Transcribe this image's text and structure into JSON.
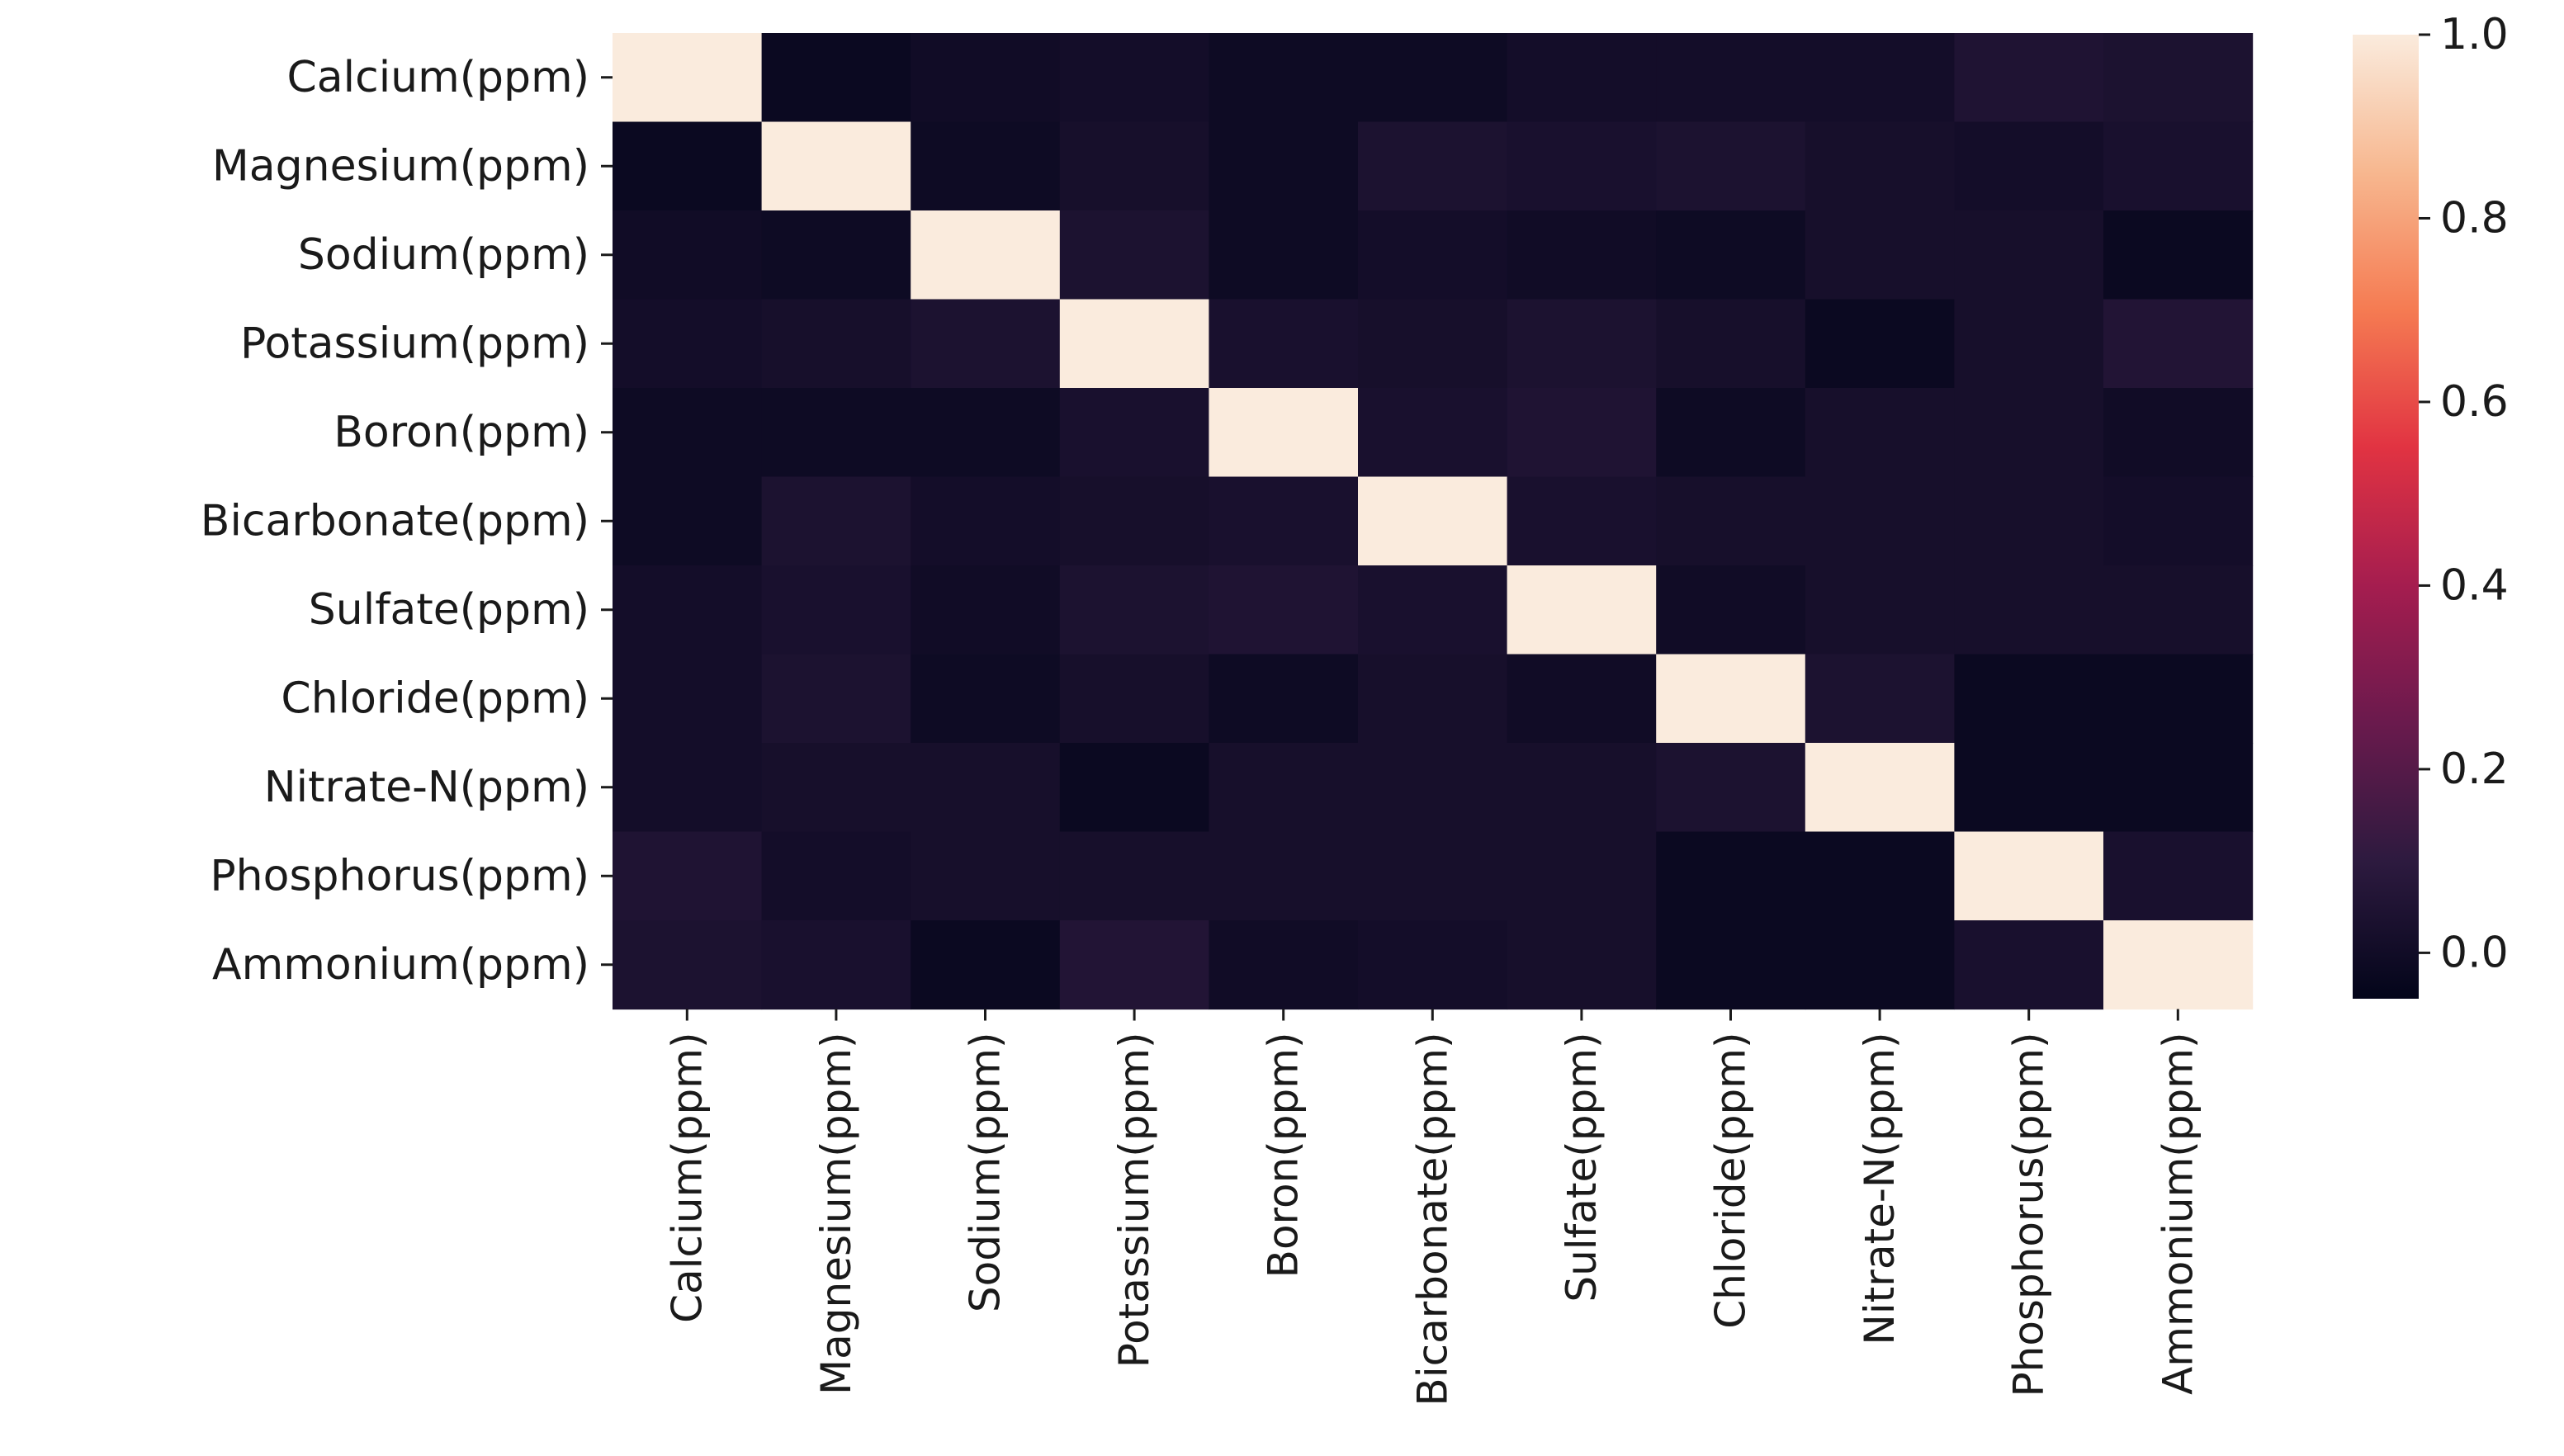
{
  "chart_data": {
    "type": "heatmap",
    "rows": [
      "Calcium(ppm)",
      "Magnesium(ppm)",
      "Sodium(ppm)",
      "Potassium(ppm)",
      "Boron(ppm)",
      "Bicarbonate(ppm)",
      "Sulfate(ppm)",
      "Chloride(ppm)",
      "Nitrate-N(ppm)",
      "Phosphorus(ppm)",
      "Ammonium(ppm)"
    ],
    "columns": [
      "Calcium(ppm)",
      "Magnesium(ppm)",
      "Sodium(ppm)",
      "Potassium(ppm)",
      "Boron(ppm)",
      "Bicarbonate(ppm)",
      "Sulfate(ppm)",
      "Chloride(ppm)",
      "Nitrate-N(ppm)",
      "Phosphorus(ppm)",
      "Ammonium(ppm)"
    ],
    "values": [
      [
        1.0,
        -0.02,
        0.0,
        0.01,
        -0.01,
        -0.01,
        0.01,
        0.01,
        0.01,
        0.05,
        0.04
      ],
      [
        -0.02,
        1.0,
        -0.01,
        0.02,
        -0.01,
        0.04,
        0.03,
        0.04,
        0.02,
        0.01,
        0.03
      ],
      [
        0.0,
        -0.01,
        1.0,
        0.04,
        -0.01,
        0.01,
        0.0,
        -0.01,
        0.02,
        0.02,
        -0.02
      ],
      [
        0.01,
        0.02,
        0.04,
        1.0,
        0.03,
        0.02,
        0.04,
        0.02,
        -0.02,
        0.02,
        0.06
      ],
      [
        -0.01,
        -0.01,
        -0.01,
        0.03,
        1.0,
        0.03,
        0.05,
        -0.01,
        0.02,
        0.02,
        0.0
      ],
      [
        -0.01,
        0.04,
        0.01,
        0.02,
        0.03,
        1.0,
        0.03,
        0.02,
        0.02,
        0.02,
        0.01
      ],
      [
        0.01,
        0.03,
        0.0,
        0.04,
        0.05,
        0.03,
        1.0,
        0.0,
        0.02,
        0.02,
        0.02
      ],
      [
        0.01,
        0.04,
        -0.01,
        0.02,
        -0.01,
        0.02,
        0.0,
        1.0,
        0.04,
        -0.02,
        -0.02
      ],
      [
        0.01,
        0.02,
        0.02,
        -0.02,
        0.02,
        0.02,
        0.02,
        0.04,
        1.0,
        -0.02,
        -0.02
      ],
      [
        0.05,
        0.01,
        0.02,
        0.02,
        0.02,
        0.02,
        0.02,
        -0.02,
        -0.02,
        1.0,
        0.03
      ],
      [
        0.04,
        0.03,
        -0.02,
        0.06,
        0.0,
        0.01,
        0.02,
        -0.02,
        -0.02,
        0.03,
        1.0
      ]
    ],
    "colorbar": {
      "min": -0.05,
      "max": 1.0,
      "ticks": [
        "0.0",
        "0.2",
        "0.4",
        "0.6",
        "0.8",
        "1.0"
      ],
      "tick_values": [
        0.0,
        0.2,
        0.4,
        0.6,
        0.8,
        1.0
      ]
    },
    "colormap": "rocket",
    "colormap_stops": [
      "#03051a",
      "#2d1a3f",
      "#6a1a4d",
      "#a51d4f",
      "#e13342",
      "#f57b52",
      "#f7b78f",
      "#faebdd"
    ],
    "title": "",
    "xlabel": "",
    "ylabel": ""
  }
}
